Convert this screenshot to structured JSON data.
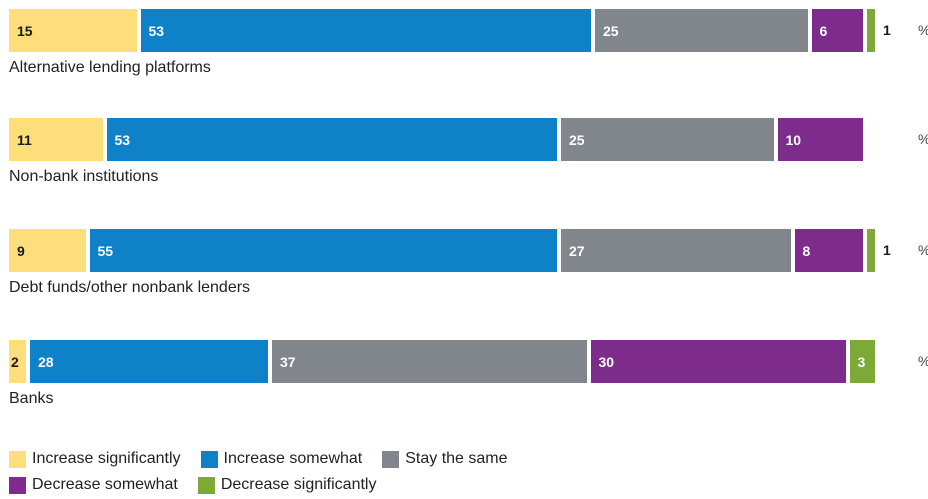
{
  "chart_data": {
    "type": "bar",
    "orientation": "horizontal",
    "stacked": true,
    "unit": "%",
    "categories": [
      "Alternative lending platforms",
      "Non-bank institutions",
      "Debt funds/other nonbank lenders",
      "Banks"
    ],
    "series": [
      {
        "name": "Increase significantly",
        "color": "#FDDE7A",
        "values": [
          15,
          11,
          9,
          2
        ]
      },
      {
        "name": "Increase somewhat",
        "color": "#0E81C8",
        "values": [
          53,
          53,
          55,
          28
        ]
      },
      {
        "name": "Stay the same",
        "color": "#80868C",
        "values": [
          25,
          25,
          27,
          37
        ]
      },
      {
        "name": "Decrease somewhat",
        "color": "#7E2C8B",
        "values": [
          6,
          10,
          8,
          30
        ]
      },
      {
        "name": "Decrease significantly",
        "color": "#7DAA37",
        "values": [
          1,
          0,
          1,
          3
        ]
      }
    ],
    "legend_position": "bottom-left",
    "grid": false
  }
}
